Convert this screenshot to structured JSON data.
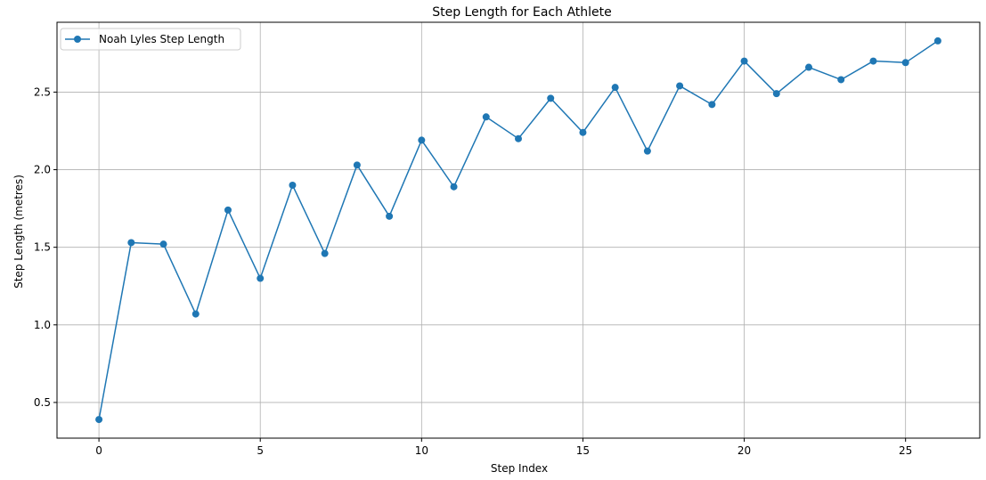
{
  "chart_data": {
    "type": "line",
    "title": "Step Length for Each Athlete",
    "xlabel": "Step Index",
    "ylabel": "Step Length (metres)",
    "xlim": [
      -1.3,
      27.3
    ],
    "ylim": [
      0.27,
      2.95
    ],
    "x_ticks": [
      0,
      5,
      10,
      15,
      20,
      25
    ],
    "y_ticks": [
      0.5,
      1.0,
      1.5,
      2.0,
      2.5
    ],
    "x_tick_labels": [
      "0",
      "5",
      "10",
      "15",
      "20",
      "25"
    ],
    "y_tick_labels": [
      "0.5",
      "1.0",
      "1.5",
      "2.0",
      "2.5"
    ],
    "grid": true,
    "legend_position": "top-left",
    "color": "#1f77b4",
    "marker": "circle",
    "series": [
      {
        "name": "Noah Lyles Step Length",
        "x": [
          0,
          1,
          2,
          3,
          4,
          5,
          6,
          7,
          8,
          9,
          10,
          11,
          12,
          13,
          14,
          15,
          16,
          17,
          18,
          19,
          20,
          21,
          22,
          23,
          24,
          25,
          26
        ],
        "y": [
          0.39,
          1.53,
          1.52,
          1.07,
          1.74,
          1.3,
          1.9,
          1.46,
          2.03,
          1.7,
          2.19,
          1.89,
          2.34,
          2.2,
          2.46,
          2.24,
          2.53,
          2.12,
          2.54,
          2.42,
          2.7,
          2.49,
          2.66,
          2.58,
          2.7,
          2.69,
          2.83
        ]
      }
    ]
  }
}
